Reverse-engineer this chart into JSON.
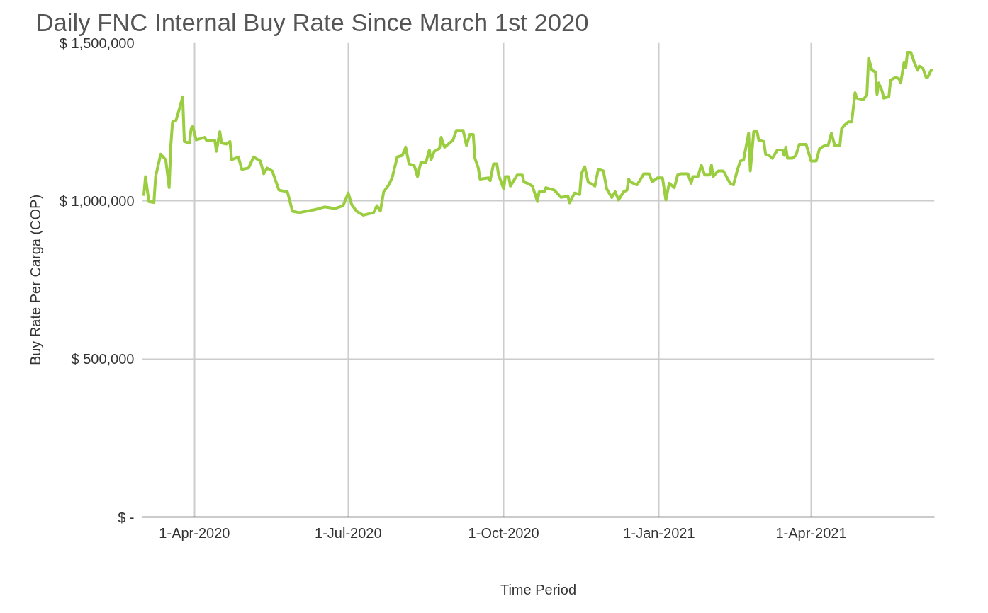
{
  "chart_data": {
    "type": "line",
    "title": "Daily FNC Internal Buy Rate Since March 1st 2020",
    "xlabel": "Time Period",
    "ylabel": "Buy Rate Per Carga (COP)",
    "x": [
      "2020-03-02",
      "2020-03-03",
      "2020-03-05",
      "2020-03-08",
      "2020-03-09",
      "2020-03-12",
      "2020-03-15",
      "2020-03-17",
      "2020-03-18",
      "2020-03-19",
      "2020-03-21",
      "2020-03-23",
      "2020-03-25",
      "2020-03-26",
      "2020-03-29",
      "2020-03-30",
      "2020-03-31",
      "2020-04-02",
      "2020-04-07",
      "2020-04-08",
      "2020-04-13",
      "2020-04-14",
      "2020-04-16",
      "2020-04-17",
      "2020-04-20",
      "2020-04-22",
      "2020-04-23",
      "2020-04-27",
      "2020-04-29",
      "2020-05-03",
      "2020-05-06",
      "2020-05-10",
      "2020-05-12",
      "2020-05-14",
      "2020-05-17",
      "2020-05-21",
      "2020-05-26",
      "2020-05-29",
      "2020-06-02",
      "2020-06-11",
      "2020-06-17",
      "2020-06-23",
      "2020-06-28",
      "2020-07-01",
      "2020-07-03",
      "2020-07-06",
      "2020-07-10",
      "2020-07-16",
      "2020-07-18",
      "2020-07-20",
      "2020-07-22",
      "2020-07-25",
      "2020-07-27",
      "2020-07-30",
      "2020-08-02",
      "2020-08-04",
      "2020-08-06",
      "2020-08-09",
      "2020-08-11",
      "2020-08-13",
      "2020-08-16",
      "2020-08-18",
      "2020-08-19",
      "2020-08-21",
      "2020-08-24",
      "2020-08-25",
      "2020-08-27",
      "2020-08-30",
      "2020-09-01",
      "2020-09-03",
      "2020-09-07",
      "2020-09-09",
      "2020-09-11",
      "2020-09-13",
      "2020-09-14",
      "2020-09-16",
      "2020-09-17",
      "2020-09-22",
      "2020-09-23",
      "2020-09-25",
      "2020-09-27",
      "2020-09-28",
      "2020-10-01",
      "2020-10-02",
      "2020-10-04",
      "2020-10-05",
      "2020-10-09",
      "2020-10-12",
      "2020-10-13",
      "2020-10-15",
      "2020-10-18",
      "2020-10-21",
      "2020-10-22",
      "2020-10-25",
      "2020-10-26",
      "2020-10-31",
      "2020-11-04",
      "2020-11-08",
      "2020-11-09",
      "2020-11-12",
      "2020-11-15",
      "2020-11-16",
      "2020-11-18",
      "2020-11-20",
      "2020-11-24",
      "2020-11-26",
      "2020-11-29",
      "2020-12-01",
      "2020-12-04",
      "2020-12-06",
      "2020-12-08",
      "2020-12-11",
      "2020-12-13",
      "2020-12-14",
      "2020-12-15",
      "2020-12-19",
      "2020-12-23",
      "2020-12-26",
      "2020-12-28",
      "2020-12-31",
      "2021-01-03",
      "2021-01-05",
      "2021-01-07",
      "2021-01-10",
      "2021-01-12",
      "2021-01-14",
      "2021-01-18",
      "2021-01-20",
      "2021-01-21",
      "2021-01-24",
      "2021-01-26",
      "2021-01-28",
      "2021-01-31",
      "2021-02-01",
      "2021-02-02",
      "2021-02-05",
      "2021-02-08",
      "2021-02-12",
      "2021-02-14",
      "2021-02-16",
      "2021-02-18",
      "2021-02-20",
      "2021-02-23",
      "2021-02-24",
      "2021-02-26",
      "2021-02-28",
      "2021-03-01",
      "2021-03-04",
      "2021-03-05",
      "2021-03-07",
      "2021-03-09",
      "2021-03-12",
      "2021-03-15",
      "2021-03-16",
      "2021-03-17",
      "2021-03-18",
      "2021-03-21",
      "2021-03-23",
      "2021-03-25",
      "2021-03-29",
      "2021-04-01",
      "2021-04-04",
      "2021-04-06",
      "2021-04-09",
      "2021-04-11",
      "2021-04-13",
      "2021-04-15",
      "2021-04-18",
      "2021-04-19",
      "2021-04-21",
      "2021-04-23",
      "2021-04-25",
      "2021-04-27",
      "2021-04-28",
      "2021-05-02",
      "2021-05-04",
      "2021-05-05",
      "2021-05-07",
      "2021-05-09",
      "2021-05-10",
      "2021-05-11",
      "2021-05-13",
      "2021-05-14",
      "2021-05-17",
      "2021-05-18",
      "2021-05-21",
      "2021-05-23",
      "2021-05-24",
      "2021-05-26",
      "2021-05-27",
      "2021-05-28",
      "2021-05-30",
      "2021-06-01",
      "2021-06-03",
      "2021-06-04",
      "2021-06-06",
      "2021-06-08",
      "2021-06-09",
      "2021-06-11",
      "2021-06-12"
    ],
    "series": [
      {
        "color": "#9acd3f",
        "values": [
          1016000,
          1077000,
          998000,
          995000,
          1077000,
          1148000,
          1130000,
          1042000,
          1175000,
          1250000,
          1254000,
          1290000,
          1329000,
          1188000,
          1183000,
          1228000,
          1236000,
          1193000,
          1201000,
          1192000,
          1192000,
          1157000,
          1219000,
          1183000,
          1180000,
          1188000,
          1130000,
          1139000,
          1100000,
          1104000,
          1139000,
          1126000,
          1086000,
          1104000,
          1095000,
          1034000,
          1029000,
          967000,
          963000,
          972000,
          981000,
          976000,
          985000,
          1025000,
          989000,
          967000,
          955000,
          963000,
          985000,
          968000,
          1029000,
          1051000,
          1073000,
          1139000,
          1144000,
          1170000,
          1117000,
          1113000,
          1077000,
          1122000,
          1122000,
          1161000,
          1130000,
          1157000,
          1166000,
          1201000,
          1170000,
          1183000,
          1192000,
          1223000,
          1223000,
          1175000,
          1210000,
          1210000,
          1135000,
          1104000,
          1069000,
          1073000,
          1064000,
          1117000,
          1117000,
          1082000,
          1038000,
          1077000,
          1077000,
          1047000,
          1082000,
          1082000,
          1060000,
          1056000,
          1047000,
          998000,
          1029000,
          1029000,
          1042000,
          1034000,
          1011000,
          1016000,
          994000,
          1025000,
          1020000,
          1086000,
          1108000,
          1060000,
          1047000,
          1100000,
          1095000,
          1038000,
          1011000,
          1029000,
          1003000,
          1029000,
          1034000,
          1069000,
          1060000,
          1051000,
          1086000,
          1086000,
          1060000,
          1073000,
          1073000,
          1003000,
          1056000,
          1042000,
          1082000,
          1086000,
          1086000,
          1056000,
          1077000,
          1077000,
          1113000,
          1082000,
          1082000,
          1113000,
          1077000,
          1095000,
          1095000,
          1056000,
          1051000,
          1091000,
          1126000,
          1130000,
          1214000,
          1095000,
          1219000,
          1219000,
          1192000,
          1188000,
          1148000,
          1144000,
          1135000,
          1161000,
          1161000,
          1144000,
          1170000,
          1135000,
          1135000,
          1144000,
          1179000,
          1179000,
          1126000,
          1126000,
          1166000,
          1175000,
          1175000,
          1214000,
          1175000,
          1175000,
          1228000,
          1241000,
          1250000,
          1250000,
          1342000,
          1325000,
          1320000,
          1337000,
          1452000,
          1413000,
          1408000,
          1337000,
          1373000,
          1347000,
          1325000,
          1329000,
          1382000,
          1391000,
          1386000,
          1373000,
          1439000,
          1421000,
          1470000,
          1470000,
          1439000,
          1413000,
          1426000,
          1421000,
          1391000,
          1391000,
          1413000,
          1413000
        ]
      }
    ],
    "xlim": [
      "2020-03-01",
      "2021-06-13"
    ],
    "xticks": [
      {
        "value": "2020-04-01",
        "label": "1-Apr-2020"
      },
      {
        "value": "2020-07-01",
        "label": "1-Jul-2020"
      },
      {
        "value": "2020-10-01",
        "label": "1-Oct-2020"
      },
      {
        "value": "2021-01-01",
        "label": "1-Jan-2021"
      },
      {
        "value": "2021-04-01",
        "label": "1-Apr-2021"
      }
    ],
    "ylim": [
      0,
      1500000
    ],
    "yticks": [
      {
        "value": 0,
        "label": "$ -"
      },
      {
        "value": 500000,
        "label": "$ 500,000"
      },
      {
        "value": 1000000,
        "label": "$ 1,000,000"
      },
      {
        "value": 1500000,
        "label": "$ 1,500,000"
      }
    ],
    "grid": true
  }
}
